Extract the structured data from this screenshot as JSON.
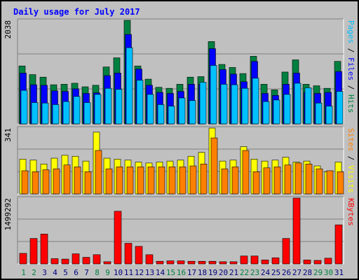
{
  "chart_data": {
    "type": "bar",
    "title": "Daily usage for July 2017",
    "categories": [
      "1",
      "2",
      "3",
      "4",
      "5",
      "6",
      "7",
      "8",
      "9",
      "10",
      "11",
      "12",
      "13",
      "14",
      "15",
      "16",
      "17",
      "18",
      "19",
      "20",
      "21",
      "22",
      "23",
      "24",
      "25",
      "26",
      "27",
      "28",
      "29",
      "30",
      "31"
    ],
    "weekend_days": [
      "1",
      "2",
      "8",
      "9",
      "15",
      "16",
      "22",
      "23",
      "29",
      "30"
    ],
    "panels": [
      {
        "id": "hits",
        "ymax_label": "2038",
        "ylim": [
          0,
          2038
        ],
        "grid": true,
        "legend": [
          "Pages",
          "Files",
          "Hits"
        ],
        "series": [
          {
            "name": "Hits",
            "color": "#008040",
            "values": [
              1140,
              970,
              920,
              770,
              780,
              800,
              730,
              760,
              1120,
              1300,
              2038,
              1140,
              880,
              720,
              700,
              780,
              920,
              930,
              1620,
              1170,
              1110,
              990,
              1330,
              780,
              670,
              1020,
              1260,
              780,
              750,
              700,
              1230
            ]
          },
          {
            "name": "Files",
            "color": "#0000ff",
            "values": [
              1000,
              770,
              760,
              650,
              640,
              690,
              600,
              610,
              950,
              1000,
              1760,
              1080,
              760,
              620,
              600,
              640,
              780,
              780,
              1480,
              1070,
              980,
              830,
              1230,
              600,
              560,
              780,
              1000,
              620,
              600,
              620,
              1030
            ]
          },
          {
            "name": "Pages",
            "color": "#00c0ff",
            "values": [
              660,
              420,
              410,
              380,
              440,
              540,
              420,
              580,
              700,
              680,
              1500,
              860,
              580,
              380,
              350,
              510,
              460,
              820,
              1150,
              780,
              770,
              700,
              900,
              440,
              470,
              580,
              800,
              710,
              410,
              350,
              640
            ]
          }
        ]
      },
      {
        "id": "visits",
        "ymax_label": "341",
        "ylim": [
          0,
          341
        ],
        "grid": true,
        "legend": [
          "Sites",
          "Visits"
        ],
        "series": [
          {
            "name": "Visits",
            "color": "#ffff00",
            "values": [
              180,
              175,
              155,
              185,
              200,
              195,
              170,
              320,
              185,
              180,
              175,
              165,
              160,
              165,
              170,
              175,
              195,
              215,
              341,
              170,
              175,
              245,
              180,
              170,
              175,
              190,
              165,
              170,
              145,
              115,
              165
            ]
          },
          {
            "name": "Sites",
            "color": "#ff8000",
            "values": [
              120,
              115,
              125,
              130,
              150,
              140,
              115,
              225,
              130,
              140,
              140,
              140,
              140,
              140,
              140,
              140,
              145,
              155,
              290,
              130,
              140,
              225,
              115,
              135,
              140,
              150,
              160,
              155,
              130,
              120,
              115
            ]
          }
        ]
      },
      {
        "id": "kbytes",
        "ymax_label": "1499292",
        "ylim": [
          0,
          1499292
        ],
        "grid": true,
        "legend": [
          "KBytes"
        ],
        "series": [
          {
            "name": "KBytes",
            "color": "#ff0000",
            "values": [
              240000,
              580000,
              680000,
              120000,
              110000,
              230000,
              150000,
              210000,
              50000,
              1200000,
              470000,
              400000,
              210000,
              60000,
              70000,
              70000,
              60000,
              60000,
              60000,
              50000,
              50000,
              180000,
              180000,
              90000,
              140000,
              580000,
              1499292,
              90000,
              80000,
              130000,
              890000
            ]
          }
        ]
      }
    ]
  }
}
